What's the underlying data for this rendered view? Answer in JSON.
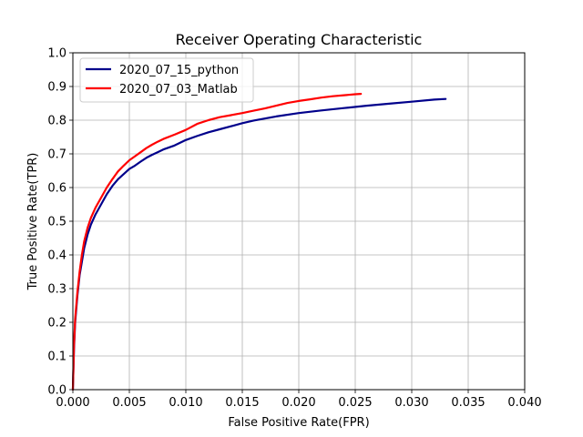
{
  "chart_data": {
    "type": "line",
    "title": "Receiver Operating Characteristic",
    "xlabel": "False Positive Rate(FPR)",
    "ylabel": "True Positive Rate(TPR)",
    "xlim": [
      0,
      0.04
    ],
    "ylim": [
      0,
      1.0
    ],
    "xticks": [
      "0.000",
      "0.005",
      "0.010",
      "0.015",
      "0.020",
      "0.025",
      "0.030",
      "0.035",
      "0.040"
    ],
    "yticks": [
      "0.0",
      "0.1",
      "0.2",
      "0.3",
      "0.4",
      "0.5",
      "0.6",
      "0.7",
      "0.8",
      "0.9",
      "1.0"
    ],
    "grid": true,
    "legend_position": "top-left",
    "series": [
      {
        "name": "2020_07_15_python",
        "color": "#00008b",
        "x": [
          0,
          0.0001,
          0.0002,
          0.0004,
          0.0006,
          0.0008,
          0.001,
          0.0013,
          0.0016,
          0.002,
          0.0025,
          0.003,
          0.0035,
          0.004,
          0.0045,
          0.005,
          0.0055,
          0.006,
          0.0065,
          0.007,
          0.0075,
          0.008,
          0.009,
          0.01,
          0.011,
          0.012,
          0.013,
          0.014,
          0.015,
          0.016,
          0.018,
          0.02,
          0.022,
          0.024,
          0.026,
          0.028,
          0.03,
          0.032,
          0.033
        ],
        "y": [
          0,
          0.12,
          0.2,
          0.28,
          0.34,
          0.38,
          0.42,
          0.46,
          0.49,
          0.52,
          0.55,
          0.58,
          0.605,
          0.625,
          0.64,
          0.655,
          0.665,
          0.677,
          0.688,
          0.697,
          0.705,
          0.713,
          0.725,
          0.741,
          0.753,
          0.764,
          0.773,
          0.782,
          0.791,
          0.799,
          0.811,
          0.821,
          0.829,
          0.836,
          0.843,
          0.849,
          0.855,
          0.861,
          0.863
        ]
      },
      {
        "name": "2020_07_03_Matlab",
        "color": "#ff0000",
        "x": [
          0,
          0.0001,
          0.0002,
          0.0004,
          0.0006,
          0.0008,
          0.001,
          0.0013,
          0.0016,
          0.002,
          0.0025,
          0.003,
          0.0035,
          0.004,
          0.0045,
          0.005,
          0.0055,
          0.006,
          0.0065,
          0.007,
          0.0075,
          0.008,
          0.009,
          0.01,
          0.011,
          0.012,
          0.013,
          0.014,
          0.015,
          0.016,
          0.017,
          0.018,
          0.019,
          0.02,
          0.021,
          0.022,
          0.023,
          0.024,
          0.025,
          0.0255
        ],
        "y": [
          0,
          0.13,
          0.21,
          0.29,
          0.35,
          0.4,
          0.44,
          0.48,
          0.51,
          0.54,
          0.57,
          0.6,
          0.625,
          0.648,
          0.665,
          0.681,
          0.693,
          0.705,
          0.717,
          0.727,
          0.736,
          0.744,
          0.757,
          0.771,
          0.789,
          0.8,
          0.809,
          0.815,
          0.821,
          0.828,
          0.835,
          0.843,
          0.851,
          0.857,
          0.862,
          0.867,
          0.871,
          0.874,
          0.877,
          0.878
        ]
      }
    ]
  }
}
